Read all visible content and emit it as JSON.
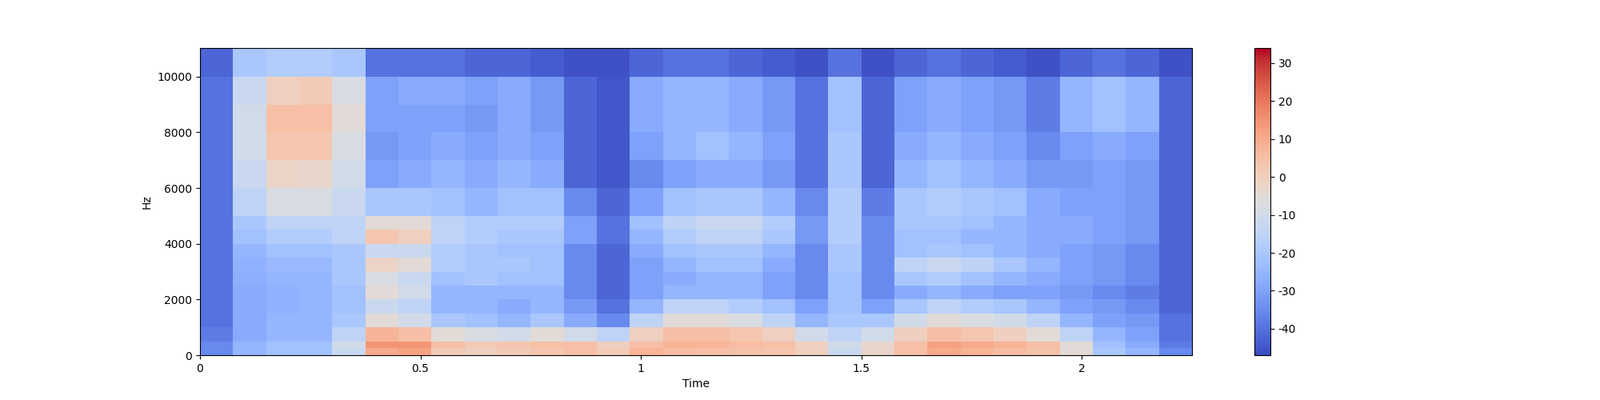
{
  "chart_data": {
    "type": "heatmap",
    "x_label": "Time",
    "y_label": "Hz",
    "xlim": [
      0,
      2.25
    ],
    "ylim": [
      0,
      11025
    ],
    "xticks": [
      0,
      0.5,
      1,
      1.5,
      2
    ],
    "yticks": [
      0,
      2000,
      4000,
      6000,
      8000,
      10000
    ],
    "x_edges": [
      0,
      0.075,
      0.15,
      0.225,
      0.3,
      0.375,
      0.45,
      0.525,
      0.6,
      0.675,
      0.75,
      0.825,
      0.9,
      0.975,
      1.05,
      1.125,
      1.2,
      1.275,
      1.35,
      1.425,
      1.5,
      1.575,
      1.65,
      1.725,
      1.8,
      1.875,
      1.95,
      2.025,
      2.1,
      2.175,
      2.25
    ],
    "y_edges": [
      0,
      250,
      500,
      1000,
      1500,
      2000,
      2500,
      3000,
      3500,
      4000,
      4500,
      5000,
      6000,
      7000,
      8000,
      9000,
      10000,
      11025
    ],
    "cells": [
      [
        -35,
        -25,
        -22,
        -22,
        -12,
        10,
        12,
        2,
        0,
        2,
        3,
        5,
        2,
        8,
        6,
        5,
        4,
        3,
        0,
        -12,
        -2,
        5,
        10,
        8,
        6,
        4,
        -5,
        -20,
        -25,
        -35
      ],
      [
        -35,
        -25,
        -22,
        -22,
        -10,
        15,
        15,
        5,
        2,
        3,
        5,
        5,
        0,
        5,
        8,
        8,
        6,
        5,
        0,
        -10,
        -3,
        5,
        12,
        10,
        8,
        5,
        -5,
        -22,
        -28,
        -38
      ],
      [
        -38,
        -28,
        -25,
        -25,
        -15,
        8,
        5,
        -5,
        -8,
        -10,
        -5,
        -10,
        -15,
        0,
        5,
        5,
        3,
        0,
        -10,
        -15,
        -10,
        0,
        5,
        3,
        0,
        -5,
        -15,
        -25,
        -30,
        -40
      ],
      [
        -40,
        -28,
        -25,
        -25,
        -20,
        -5,
        -10,
        -20,
        -22,
        -25,
        -20,
        -28,
        -35,
        -15,
        -5,
        -5,
        -8,
        -15,
        -25,
        -20,
        -20,
        -10,
        -5,
        -8,
        -10,
        -15,
        -25,
        -30,
        -32,
        -40
      ],
      [
        -40,
        -28,
        -26,
        -25,
        -22,
        -12,
        -15,
        -25,
        -25,
        -28,
        -25,
        -32,
        -40,
        -25,
        -15,
        -15,
        -18,
        -22,
        -30,
        -22,
        -30,
        -20,
        -15,
        -18,
        -20,
        -25,
        -30,
        -32,
        -35,
        -42
      ],
      [
        -40,
        -28,
        -26,
        -25,
        -22,
        -5,
        -10,
        -25,
        -25,
        -25,
        -25,
        -35,
        -42,
        -30,
        -25,
        -25,
        -25,
        -30,
        -35,
        -22,
        -35,
        -28,
        -25,
        -28,
        -30,
        -30,
        -32,
        -35,
        -38,
        -42
      ],
      [
        -40,
        -27,
        -25,
        -25,
        -20,
        -8,
        -12,
        -22,
        -20,
        -22,
        -22,
        -35,
        -42,
        -30,
        -28,
        -25,
        -25,
        -30,
        -35,
        -22,
        -35,
        -20,
        -18,
        -22,
        -25,
        -28,
        -30,
        -32,
        -35,
        -42
      ],
      [
        -40,
        -26,
        -24,
        -24,
        -20,
        -2,
        -5,
        -18,
        -20,
        -20,
        -22,
        -35,
        -42,
        -30,
        -25,
        -22,
        -22,
        -28,
        -35,
        -20,
        -35,
        -15,
        -12,
        -15,
        -20,
        -25,
        -30,
        -32,
        -35,
        -42
      ],
      [
        -40,
        -25,
        -22,
        -22,
        -20,
        -12,
        -12,
        -18,
        -20,
        -22,
        -22,
        -35,
        -42,
        -28,
        -22,
        -20,
        -20,
        -25,
        -35,
        -20,
        -35,
        -22,
        -20,
        -22,
        -25,
        -28,
        -30,
        -32,
        -35,
        -42
      ],
      [
        -40,
        -22,
        -18,
        -18,
        -15,
        3,
        0,
        -15,
        -18,
        -20,
        -20,
        -30,
        -40,
        -25,
        -18,
        -15,
        -15,
        -20,
        -32,
        -18,
        -35,
        -22,
        -22,
        -25,
        -25,
        -28,
        -28,
        -30,
        -32,
        -42
      ],
      [
        -40,
        -20,
        -15,
        -15,
        -15,
        -5,
        -5,
        -15,
        -18,
        -18,
        -18,
        -30,
        -40,
        -22,
        -15,
        -12,
        -12,
        -18,
        -32,
        -18,
        -35,
        -20,
        -20,
        -22,
        -25,
        -28,
        -28,
        -30,
        -32,
        -42
      ],
      [
        -40,
        -15,
        -8,
        -8,
        -12,
        -20,
        -20,
        -22,
        -25,
        -22,
        -22,
        -35,
        -42,
        -30,
        -22,
        -20,
        -20,
        -25,
        -35,
        -18,
        -38,
        -20,
        -18,
        -20,
        -22,
        -28,
        -30,
        -30,
        -32,
        -42
      ],
      [
        -40,
        -12,
        -2,
        -3,
        -10,
        -30,
        -28,
        -25,
        -28,
        -25,
        -28,
        -42,
        -45,
        -35,
        -30,
        -28,
        -28,
        -32,
        -40,
        -20,
        -42,
        -25,
        -22,
        -25,
        -28,
        -32,
        -32,
        -30,
        -32,
        -42
      ],
      [
        -40,
        -10,
        3,
        3,
        -8,
        -32,
        -30,
        -28,
        -30,
        -28,
        -30,
        -42,
        -45,
        -30,
        -25,
        -22,
        -25,
        -30,
        -40,
        -20,
        -42,
        -28,
        -25,
        -28,
        -30,
        -35,
        -30,
        -28,
        -30,
        -42
      ],
      [
        -40,
        -10,
        5,
        5,
        -5,
        -30,
        -30,
        -30,
        -32,
        -28,
        -32,
        -42,
        -45,
        -28,
        -25,
        -25,
        -28,
        -32,
        -40,
        -22,
        -42,
        -30,
        -28,
        -30,
        -32,
        -38,
        -25,
        -22,
        -25,
        -42
      ],
      [
        -40,
        -12,
        0,
        2,
        -8,
        -30,
        -28,
        -28,
        -30,
        -28,
        -32,
        -42,
        -45,
        -28,
        -25,
        -25,
        -28,
        -32,
        -40,
        -22,
        -42,
        -30,
        -28,
        -30,
        -32,
        -38,
        -25,
        -22,
        -25,
        -42
      ],
      [
        -42,
        -20,
        -18,
        -18,
        -20,
        -40,
        -40,
        -40,
        -42,
        -42,
        -44,
        -46,
        -46,
        -42,
        -40,
        -40,
        -42,
        -44,
        -46,
        -40,
        -46,
        -42,
        -40,
        -42,
        -44,
        -46,
        -42,
        -40,
        -42,
        -46
      ]
    ],
    "colorbar_range": [
      -47,
      34
    ],
    "colorbar_ticks": [
      -40,
      -30,
      -20,
      -10,
      0,
      10,
      20,
      30
    ]
  }
}
